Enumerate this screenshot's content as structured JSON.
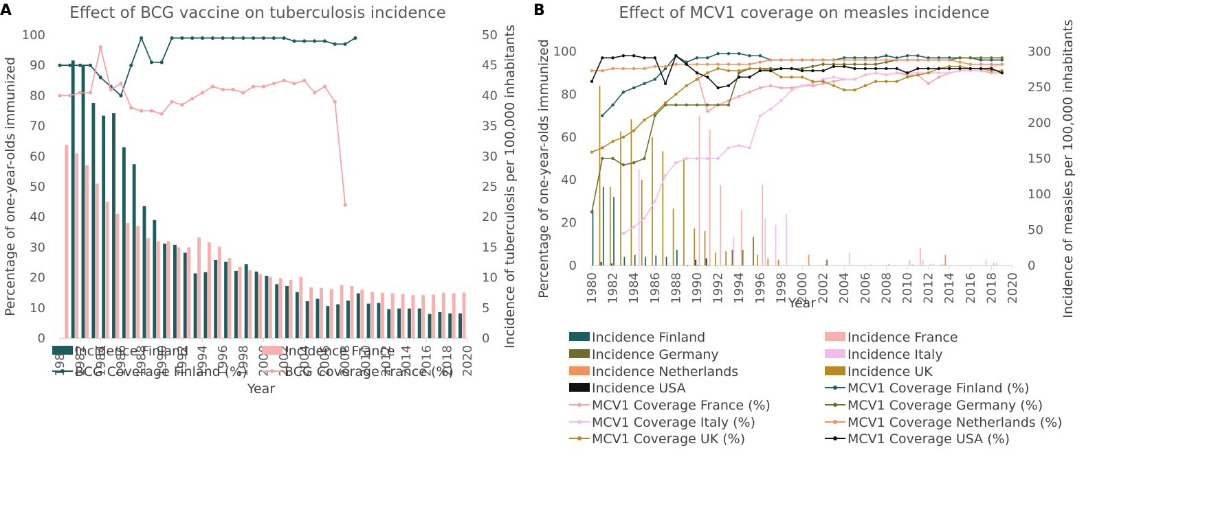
{
  "chart_data": [
    {
      "panel": "A",
      "type": "bar+line",
      "title": "Effect of BCG vaccine on tuberculosis incidence",
      "xlabel": "Year",
      "ylabel": "Percentage of one-year-olds immunized",
      "y2label": "Incidence of tuberculosis per 100,000 inhabitants",
      "xlim": [
        1980,
        2020
      ],
      "ylim": [
        0,
        100
      ],
      "y2lim": [
        0,
        50
      ],
      "xticks": [
        "1980",
        "1982",
        "1984",
        "1986",
        "1988",
        "1990",
        "1992",
        "1994",
        "1996",
        "1998",
        "2000",
        "2002",
        "2004",
        "2006",
        "2008",
        "2010",
        "2012",
        "2014",
        "2016",
        "2018",
        "2020"
      ],
      "yticks": [
        "0",
        "10",
        "20",
        "30",
        "40",
        "50",
        "60",
        "70",
        "80",
        "90",
        "100"
      ],
      "y2ticks": [
        "0",
        "5",
        "10",
        "15",
        "20",
        "25",
        "30",
        "35",
        "40",
        "45",
        "50"
      ],
      "years": [
        1980,
        1981,
        1982,
        1983,
        1984,
        1985,
        1986,
        1987,
        1988,
        1989,
        1990,
        1991,
        1992,
        1993,
        1994,
        1995,
        1996,
        1997,
        1998,
        1999,
        2000,
        2001,
        2002,
        2003,
        2004,
        2005,
        2006,
        2007,
        2008,
        2009,
        2010,
        2011,
        2012,
        2013,
        2014,
        2015,
        2016,
        2017,
        2018,
        2019
      ],
      "bar_series": [
        {
          "name": "Incidence Finland",
          "color": "#1f5c5e",
          "values": [
            null,
            45.8,
            44.9,
            38.8,
            36.7,
            37.1,
            31.5,
            28.7,
            21.8,
            19.5,
            15.6,
            15.4,
            14.1,
            10.7,
            10.9,
            12.9,
            12.6,
            11.1,
            12.2,
            11.0,
            10.3,
            8.9,
            8.6,
            7.6,
            6.1,
            6.5,
            5.3,
            5.6,
            6.2,
            7.4,
            5.7,
            5.8,
            4.8,
            4.9,
            4.9,
            4.9,
            4.0,
            4.3,
            4.1,
            4.1
          ]
        },
        {
          "name": "Incidence France",
          "color": "#f6b0ae",
          "values": [
            31.9,
            30.5,
            28.5,
            25.5,
            22.5,
            20.5,
            19.0,
            18.5,
            16.5,
            16.0,
            16.0,
            15.0,
            15.0,
            16.6,
            15.8,
            15.1,
            13.2,
            11.8,
            11.2,
            10.6,
            10.1,
            9.9,
            9.6,
            10.1,
            8.4,
            8.3,
            8.1,
            8.8,
            8.6,
            8.0,
            7.6,
            7.5,
            7.4,
            7.3,
            7.1,
            7.1,
            7.2,
            7.5,
            7.4,
            7.5
          ]
        }
      ],
      "line_series": [
        {
          "name": "BCG Coverage Finland (%)",
          "color": "#1f5c5e",
          "values": [
            90,
            90,
            90,
            90,
            86,
            83,
            80,
            90,
            99,
            91,
            91,
            99,
            99,
            99,
            99,
            99,
            99,
            99,
            99,
            99,
            99,
            99,
            99,
            98,
            98,
            98,
            98,
            97,
            97,
            99,
            null,
            null,
            null,
            null,
            null,
            null,
            null,
            null,
            null,
            null
          ]
        },
        {
          "name": "BCG Coverage France (%)",
          "color": "#f6a3a6",
          "values": [
            80,
            80,
            81,
            81,
            96,
            82,
            84,
            76,
            75,
            75,
            74,
            78,
            77,
            79,
            81,
            83,
            82,
            82,
            81,
            83,
            83,
            84,
            85,
            84,
            85,
            81,
            83,
            78,
            44,
            null,
            null,
            null,
            null,
            null,
            null,
            null,
            null,
            null,
            null,
            null
          ]
        }
      ],
      "legend": [
        "Incidence Finland",
        "Incidence France",
        "BCG Coverage Finland (%)",
        "BCG Coverage France (%)"
      ]
    },
    {
      "panel": "B",
      "type": "bar+line",
      "title": "Effect of MCV1 coverage on measles incidence",
      "xlabel": "Year",
      "ylabel": "Percentage of one-year-olds immunized",
      "y2label": "Incidence of measles per 100,000 inhabitants",
      "xlim": [
        1980,
        2020
      ],
      "ylim": [
        0,
        100
      ],
      "y2lim": [
        0,
        300
      ],
      "xticks": [
        "1980",
        "1982",
        "1984",
        "1986",
        "1988",
        "1990",
        "1992",
        "1994",
        "1996",
        "1998",
        "2000",
        "2002",
        "2004",
        "2006",
        "2008",
        "2010",
        "2012",
        "2014",
        "2016",
        "2018",
        "2020"
      ],
      "yticks": [
        "0",
        "20",
        "40",
        "60",
        "80",
        "100"
      ],
      "y2ticks": [
        "0",
        "50",
        "100",
        "150",
        "200",
        "250",
        "300"
      ],
      "years": [
        1980,
        1981,
        1982,
        1983,
        1984,
        1985,
        1986,
        1987,
        1988,
        1989,
        1990,
        1991,
        1992,
        1993,
        1994,
        1995,
        1996,
        1997,
        1998,
        1999,
        2000,
        2001,
        2002,
        2003,
        2004,
        2005,
        2006,
        2007,
        2008,
        2009,
        2010,
        2011,
        2012,
        2013,
        2014,
        2015,
        2016,
        2017,
        2018,
        2019
      ],
      "bar_series": [
        {
          "name": "Incidence Finland",
          "color": "#1f5c5e",
          "values": [
            78,
            110,
            96,
            12,
            15,
            12,
            14,
            12,
            22,
            1,
            1,
            1,
            0,
            0,
            0,
            0,
            0,
            0,
            0,
            0,
            0,
            0,
            0,
            0,
            0,
            0,
            0,
            0,
            0,
            0,
            0,
            0,
            0,
            0,
            0,
            0,
            0,
            0,
            0,
            0
          ]
        },
        {
          "name": "Incidence France",
          "color": "#f6b0ae",
          "values": [
            0,
            0,
            0,
            0,
            0,
            0,
            0,
            0,
            0,
            0,
            210,
            190,
            113,
            0,
            77,
            0,
            113,
            0,
            0,
            0,
            0,
            0,
            2,
            0,
            0,
            0,
            0,
            0,
            2,
            0,
            8,
            24,
            2,
            2,
            0,
            0,
            0,
            0,
            4,
            0
          ]
        },
        {
          "name": "Incidence Germany",
          "color": "#6e6d2a",
          "values": [
            0,
            0,
            0,
            0,
            0,
            0,
            0,
            0,
            0,
            0,
            0,
            0,
            0,
            22,
            22,
            40,
            0,
            0,
            0,
            0,
            0,
            0,
            8,
            0,
            0,
            0,
            0,
            0,
            0,
            0,
            0,
            0,
            0,
            0,
            0,
            0,
            0,
            0,
            0,
            0
          ]
        },
        {
          "name": "Incidence Italy",
          "color": "#f2bbea",
          "values": [
            0,
            0,
            0,
            0,
            135,
            0,
            0,
            0,
            0,
            0,
            0,
            0,
            0,
            40,
            0,
            0,
            66,
            57,
            72,
            0,
            0,
            0,
            0,
            0,
            18,
            0,
            2,
            0,
            0,
            0,
            2,
            8,
            2,
            2,
            0,
            0,
            0,
            8,
            4,
            0
          ]
        },
        {
          "name": "Incidence Netherlands",
          "color": "#f0935a",
          "values": [
            0,
            0,
            0,
            0,
            0,
            0,
            0,
            0,
            0,
            0,
            0,
            0,
            0,
            0,
            0,
            0,
            0,
            0,
            0,
            0,
            15,
            0,
            0,
            0,
            0,
            0,
            0,
            0,
            0,
            0,
            0,
            0,
            0,
            15,
            0,
            0,
            0,
            0,
            0,
            0
          ]
        },
        {
          "name": "Incidence UK",
          "color": "#b58a22",
          "values": [
            252,
            110,
            188,
            205,
            120,
            180,
            160,
            80,
            150,
            52,
            48,
            18,
            20,
            0,
            0,
            15,
            10,
            8,
            0,
            0,
            0,
            0,
            0,
            0,
            0,
            0,
            0,
            0,
            0,
            0,
            0,
            0,
            0,
            0,
            0,
            0,
            0,
            0,
            0,
            0
          ]
        },
        {
          "name": "Incidence USA",
          "color": "#111111",
          "values": [
            5,
            3,
            0,
            0,
            0,
            0,
            0,
            0,
            0,
            8,
            10,
            0,
            0,
            0,
            0,
            0,
            0,
            0,
            0,
            0,
            0,
            0,
            0,
            0,
            0,
            0,
            0,
            0,
            0,
            0,
            0,
            0,
            0,
            0,
            0,
            0,
            0,
            0,
            0,
            0
          ]
        }
      ],
      "line_series": [
        {
          "name": "MCV1 Coverage Finland (%)",
          "color": "#1f5c5e",
          "values": [
            null,
            70,
            75,
            81,
            83,
            85,
            87,
            92,
            98,
            95,
            97,
            97,
            99,
            99,
            99,
            98,
            98,
            96,
            96,
            96,
            96,
            96,
            96,
            96,
            97,
            97,
            97,
            97,
            98,
            97,
            98,
            98,
            97,
            97,
            97,
            97,
            97,
            96,
            96,
            96
          ]
        },
        {
          "name": "MCV1 Coverage France (%)",
          "color": "#f6a3a6",
          "values": [
            null,
            null,
            null,
            null,
            null,
            null,
            null,
            null,
            null,
            null,
            90,
            72,
            75,
            77,
            79,
            81,
            83,
            84,
            83,
            83,
            84,
            84,
            85,
            86,
            87,
            87,
            89,
            90,
            89,
            90,
            89,
            89,
            85,
            88,
            90,
            91,
            91,
            91,
            90,
            90
          ]
        },
        {
          "name": "MCV1 Coverage Germany (%)",
          "color": "#6e6d2a",
          "values": [
            25,
            50,
            50,
            47,
            48,
            50,
            70,
            75,
            75,
            75,
            75,
            75,
            75,
            75,
            90,
            92,
            92,
            92,
            92,
            92,
            92,
            93,
            94,
            94,
            94,
            94,
            94,
            94,
            95,
            96,
            96,
            96,
            96,
            96,
            96,
            97,
            97,
            97,
            97,
            97
          ]
        },
        {
          "name": "MCV1 Coverage Italy (%)",
          "color": "#f2bbea",
          "values": [
            null,
            null,
            null,
            15,
            18,
            22,
            30,
            42,
            48,
            50,
            50,
            50,
            50,
            55,
            56,
            55,
            70,
            73,
            77,
            82,
            84,
            85,
            87,
            88,
            87,
            87,
            89,
            90,
            89,
            90,
            90,
            90,
            90,
            90,
            90,
            91,
            91,
            91,
            93,
            94
          ]
        },
        {
          "name": "MCV1 Coverage Netherlands (%)",
          "color": "#f0935a",
          "values": [
            91,
            91,
            92,
            92,
            92,
            92,
            93,
            93,
            94,
            94,
            94,
            94,
            94,
            94,
            94,
            94,
            95,
            96,
            96,
            96,
            96,
            96,
            96,
            96,
            96,
            96,
            96,
            96,
            96,
            96,
            96,
            96,
            96,
            96,
            96,
            95,
            94,
            94,
            94,
            94
          ]
        },
        {
          "name": "MCV1 Coverage UK (%)",
          "color": "#b58a22",
          "values": [
            53,
            55,
            58,
            60,
            63,
            68,
            71,
            76,
            80,
            84,
            87,
            90,
            92,
            91,
            91,
            92,
            92,
            91,
            88,
            88,
            88,
            86,
            86,
            84,
            82,
            82,
            84,
            86,
            86,
            86,
            88,
            89,
            90,
            92,
            93,
            93,
            92,
            92,
            91,
            91
          ]
        },
        {
          "name": "MCV1 Coverage USA (%)",
          "color": "#111111",
          "values": [
            86,
            97,
            97,
            98,
            98,
            97,
            97,
            85,
            98,
            94,
            90,
            88,
            83,
            84,
            88,
            88,
            91,
            91,
            92,
            92,
            91,
            91,
            91,
            93,
            93,
            92,
            92,
            92,
            92,
            92,
            90,
            92,
            92,
            92,
            92,
            92,
            92,
            92,
            92,
            90
          ]
        }
      ],
      "legend": [
        "Incidence Finland",
        "Incidence France",
        "Incidence Germany",
        "Incidence Italy",
        "Incidence Netherlands",
        "Incidence UK",
        "Incidence USA",
        "MCV1 Coverage Finland (%)",
        "MCV1 Coverage France (%)",
        "MCV1 Coverage Germany (%)",
        "MCV1 Coverage Italy (%)",
        "MCV1 Coverage Netherlands (%)",
        "MCV1 Coverage UK (%)",
        "MCV1 Coverage USA (%)"
      ]
    }
  ]
}
